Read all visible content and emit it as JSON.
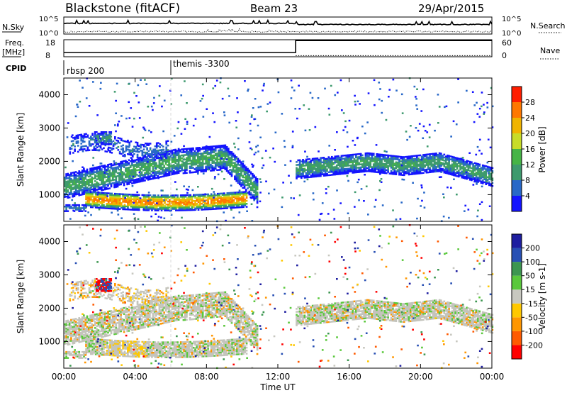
{
  "header": {
    "station": "Blackstone (fitACF)",
    "beam": "Beam 23",
    "date": "29/Apr/2015"
  },
  "side_labels": {
    "nsky": "N.Sky",
    "nsearch": "N.Search",
    "freq": "Freq.",
    "freq_unit": "[MHz]",
    "nave": "Nave",
    "cpid": "CPID"
  },
  "cpid": [
    {
      "label": "rbsp 200",
      "start_hour": 0
    },
    {
      "label": "themis -3300",
      "start_hour": 6
    }
  ],
  "colors": {
    "power": [
      "#1414ff",
      "#2868c8",
      "#3e9a6e",
      "#46b446",
      "#c8dc28",
      "#f0b400",
      "#ff7800",
      "#ff1e00"
    ],
    "velocity": [
      "#ff0000",
      "#ff5a00",
      "#ff9600",
      "#ffc800",
      "#c8c8c0",
      "#5ac83c",
      "#3c9650",
      "#2850b4",
      "#1e1ea0"
    ],
    "ground": "#c4c4bc"
  },
  "chart_data": [
    {
      "type": "line",
      "panel": "counts",
      "ylabel_left": "N.Sky",
      "ylabel_right": "N.Search",
      "yticks_left": [
        "10^5",
        "10^0"
      ],
      "yticks_right": [
        "10^5",
        "10^0"
      ],
      "series": [
        {
          "name": "N.Sky",
          "style": "solid"
        },
        {
          "name": "N.Search",
          "style": "dotted"
        }
      ]
    },
    {
      "type": "line",
      "panel": "frequency",
      "ylabel_left": "Freq. [MHz]",
      "ylabel_right": "Nave",
      "yticks_left": [
        "18",
        "8"
      ],
      "yticks_right": [
        "60",
        "0"
      ],
      "freq_step_hour": 13,
      "freq_before": 10.5,
      "freq_after": 17.5,
      "nave_level": 4
    },
    {
      "type": "heatmap",
      "panel": "power",
      "xlabel": "",
      "ylabel": "Slant Range [km]",
      "xlim": [
        0,
        24
      ],
      "ylim": [
        200,
        4500
      ],
      "yticks": [
        1000,
        2000,
        3000,
        4000
      ],
      "colorbar_label": "Power [dB]",
      "colorbar_ticks": [
        "4",
        "8",
        "12",
        "16",
        "20",
        "24",
        "28"
      ],
      "features": [
        {
          "name": "upper band",
          "hours": [
            0,
            10.8
          ],
          "ranges_km": [
            1200,
            2100
          ],
          "level": "low-mid"
        },
        {
          "name": "lower band",
          "hours": [
            1.2,
            10.2
          ],
          "ranges_km": [
            600,
            1100
          ],
          "level": "high"
        },
        {
          "name": "late band",
          "hours": [
            13,
            24
          ],
          "ranges_km": [
            1500,
            2100
          ],
          "level": "mid"
        }
      ]
    },
    {
      "type": "heatmap",
      "panel": "velocity",
      "xlabel": "Time UT",
      "ylabel": "Slant Range [km]",
      "xlim": [
        0,
        24
      ],
      "ylim": [
        200,
        4500
      ],
      "yticks": [
        1000,
        2000,
        3000,
        4000
      ],
      "xticks": [
        "00:00",
        "04:00",
        "08:00",
        "12:00",
        "16:00",
        "20:00",
        "00:00"
      ],
      "colorbar_label": "Velocity [m s-1]",
      "colorbar_ticks": [
        "200",
        "100",
        "50",
        "15",
        "-15",
        "-50",
        "-100",
        "-200"
      ]
    }
  ]
}
